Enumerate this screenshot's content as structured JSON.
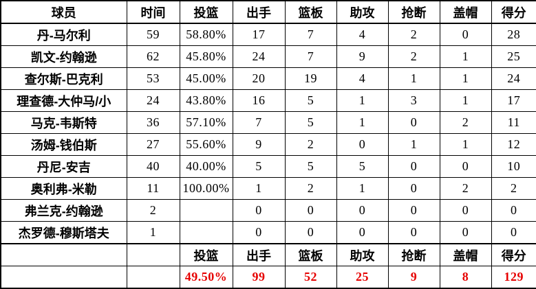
{
  "table": {
    "columns": [
      {
        "key": "player",
        "label": "球员"
      },
      {
        "key": "minutes",
        "label": "时间"
      },
      {
        "key": "fg_pct",
        "label": "投篮"
      },
      {
        "key": "fga",
        "label": "出手"
      },
      {
        "key": "rebounds",
        "label": "篮板"
      },
      {
        "key": "assists",
        "label": "助攻"
      },
      {
        "key": "steals",
        "label": "抢断"
      },
      {
        "key": "blocks",
        "label": "盖帽"
      },
      {
        "key": "points",
        "label": "得分"
      }
    ],
    "rows": [
      [
        "丹-马尔利",
        "59",
        "58.80%",
        "17",
        "7",
        "4",
        "2",
        "0",
        "28"
      ],
      [
        "凯文-约翰逊",
        "62",
        "45.80%",
        "24",
        "7",
        "9",
        "2",
        "1",
        "25"
      ],
      [
        "查尔斯-巴克利",
        "53",
        "45.00%",
        "20",
        "19",
        "4",
        "1",
        "1",
        "24"
      ],
      [
        "理查德-大仲马/小",
        "24",
        "43.80%",
        "16",
        "5",
        "1",
        "3",
        "1",
        "17"
      ],
      [
        "马克-韦斯特",
        "36",
        "57.10%",
        "7",
        "5",
        "1",
        "0",
        "2",
        "11"
      ],
      [
        "汤姆-钱伯斯",
        "27",
        "55.60%",
        "9",
        "2",
        "0",
        "1",
        "1",
        "12"
      ],
      [
        "丹尼-安吉",
        "40",
        "40.00%",
        "5",
        "5",
        "5",
        "0",
        "0",
        "10"
      ],
      [
        "奥利弗-米勒",
        "11",
        "100.00%",
        "1",
        "2",
        "1",
        "0",
        "2",
        "2"
      ],
      [
        "弗兰克-约翰逊",
        "2",
        "",
        "0",
        "0",
        "0",
        "0",
        "0",
        "0"
      ],
      [
        "杰罗德-穆斯塔夫",
        "1",
        "",
        "0",
        "0",
        "0",
        "0",
        "0",
        "0"
      ]
    ],
    "footer_header": [
      "",
      "",
      "投篮",
      "出手",
      "篮板",
      "助攻",
      "抢断",
      "盖帽",
      "得分"
    ],
    "totals": [
      "",
      "",
      "49.50%",
      "99",
      "52",
      "25",
      "9",
      "8",
      "129"
    ]
  },
  "colors": {
    "total_text": "#e60000",
    "border": "#000000",
    "background": "#ffffff"
  }
}
